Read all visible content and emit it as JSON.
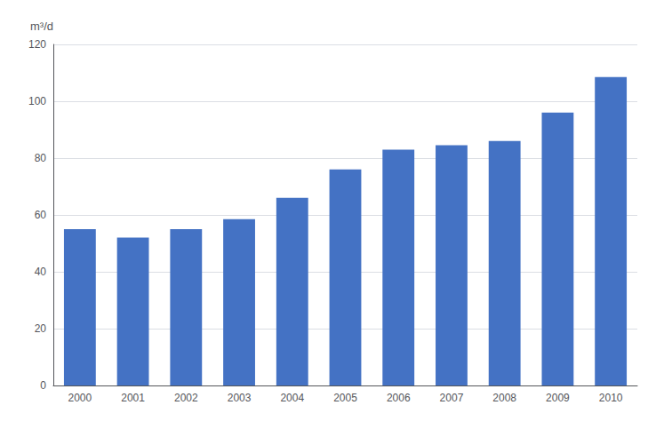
{
  "chart_data": {
    "type": "bar",
    "categories": [
      "2000",
      "2001",
      "2002",
      "2003",
      "2004",
      "2005",
      "2006",
      "2007",
      "2008",
      "2009",
      "2010"
    ],
    "values": [
      55,
      52,
      55,
      58.5,
      66,
      76,
      83,
      84.5,
      86,
      96,
      108.5
    ],
    "color": "#4472C4",
    "ylabel": "m³/d",
    "ylim": [
      0,
      120
    ],
    "yticks": [
      0,
      20,
      40,
      60,
      80,
      100,
      120
    ],
    "grid": true
  }
}
